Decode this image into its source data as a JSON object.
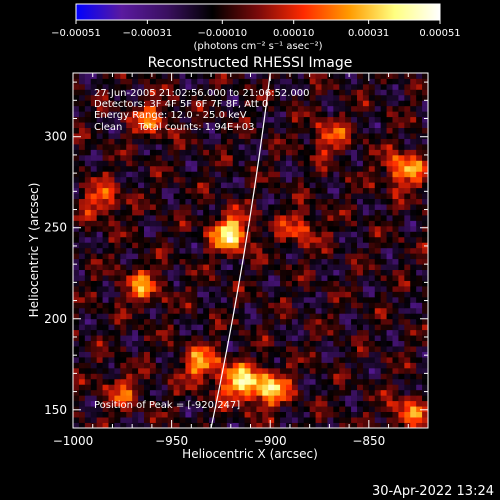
{
  "chart_data": {
    "type": "heatmap",
    "title": "Reconstructed RHESSI Image",
    "xlabel": "Heliocentric X (arcsec)",
    "ylabel": "Heliocentric Y (arcsec)",
    "xlim": [
      -1000,
      -820
    ],
    "ylim": [
      140,
      335
    ],
    "xticks": [
      -1000,
      -950,
      -900,
      -850
    ],
    "yticks": [
      150,
      200,
      250,
      300
    ],
    "xtick_labels": [
      "−1000",
      "−950",
      "−900",
      "−850"
    ],
    "ytick_labels": [
      "150",
      "200",
      "250",
      "300"
    ],
    "colorbar": {
      "range": [
        -0.00051,
        0.00051
      ],
      "ticks": [
        -0.00051,
        -0.00031,
        -0.0001,
        0.0001,
        0.00031,
        0.00051
      ],
      "tick_labels": [
        "−0.00051",
        "−0.00031",
        "−0.00010",
        "0.00010",
        "0.00031",
        "0.00051"
      ],
      "unit_label": "(photons cm⁻² s⁻¹ asec⁻²)",
      "colors": [
        "#0000ff",
        "#5a1aa0",
        "#3a1060",
        "#000000",
        "#7a0a0a",
        "#ff2a00",
        "#ff9a00",
        "#ffff80",
        "#ffffff"
      ]
    },
    "annotations": [
      "27-Jun-2005 21:02:56.000 to 21:06:52.000",
      "Detectors: 3F 4F 5F 6F 7F 8F, Att 0",
      "Energy Range: 12.0 - 25.0 keV",
      "Clean     Total counts: 1.94E+03"
    ],
    "peak_label": "Position of Peak = [-920,247]",
    "peak": [
      -920,
      247
    ],
    "bright_sources": [
      {
        "x": -920,
        "y": 247,
        "value": 0.00051
      },
      {
        "x": -915,
        "y": 165,
        "value": 0.00045
      },
      {
        "x": -900,
        "y": 162,
        "value": 0.0004
      },
      {
        "x": -935,
        "y": 175,
        "value": 0.00035
      },
      {
        "x": -832,
        "y": 282,
        "value": 0.0004
      },
      {
        "x": -965,
        "y": 218,
        "value": 0.0003
      },
      {
        "x": -985,
        "y": 265,
        "value": 0.00028
      },
      {
        "x": -830,
        "y": 148,
        "value": 0.0003
      },
      {
        "x": -885,
        "y": 250,
        "value": 0.00025
      },
      {
        "x": -870,
        "y": 300,
        "value": 0.00025
      },
      {
        "x": -960,
        "y": 310,
        "value": 0.00028
      },
      {
        "x": -975,
        "y": 160,
        "value": 0.00022
      }
    ],
    "limb_curve": [
      [
        -930,
        140
      ],
      [
        -900,
        335
      ]
    ]
  },
  "footer": {
    "timestamp": "30-Apr-2022 13:24"
  }
}
